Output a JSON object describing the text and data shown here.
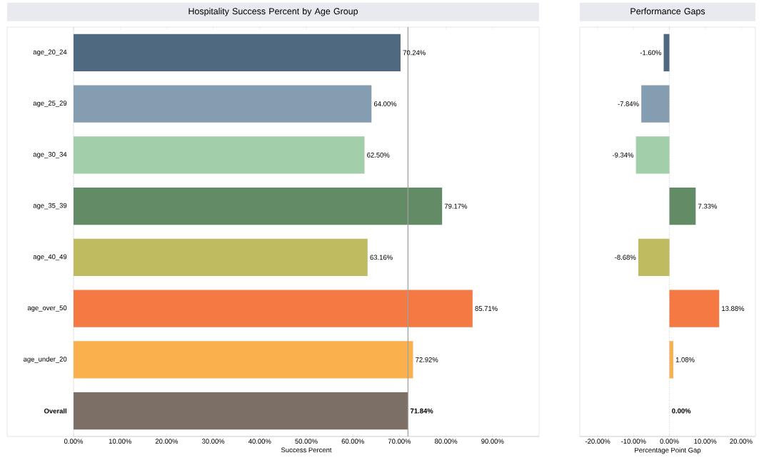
{
  "chart_data": [
    {
      "type": "bar",
      "orientation": "horizontal",
      "title": "Hospitality Success Percent by Age Group",
      "xlabel": "Success Percent",
      "categories": [
        "age_20_24",
        "age_25_29",
        "age_30_34",
        "age_35_39",
        "age_40_49",
        "age_over_50",
        "age_under_20",
        "**Overall**"
      ],
      "values": [
        70.24,
        64.0,
        62.5,
        79.17,
        63.16,
        85.71,
        72.92,
        71.84
      ],
      "colors": [
        "#4f6980",
        "#849db1",
        "#a2ceaa",
        "#638b66",
        "#bfbb60",
        "#f47942",
        "#fbb04e",
        "#7b6f66"
      ],
      "value_labels": [
        "70.24%",
        "64.00%",
        "62.50%",
        "79.17%",
        "63.16%",
        "85.71%",
        "72.92%",
        "**71.84%**"
      ],
      "xlim": [
        0,
        100
      ],
      "xticks": [
        {
          "value": 0,
          "label": "0.00%"
        },
        {
          "value": 10,
          "label": "10.00%"
        },
        {
          "value": 20,
          "label": "20.00%"
        },
        {
          "value": 30,
          "label": "30.00%"
        },
        {
          "value": 40,
          "label": "40.00%"
        },
        {
          "value": 50,
          "label": "50.00%"
        },
        {
          "value": 60,
          "label": "60.00%"
        },
        {
          "value": 70,
          "label": "70.00%"
        },
        {
          "value": 80,
          "label": "80.00%"
        },
        {
          "value": 90,
          "label": "90.00%"
        }
      ],
      "ref_lines": [
        {
          "axis": "x",
          "value": 71.84,
          "color": "#a0a0a0",
          "line_style": "solid"
        }
      ]
    },
    {
      "type": "bar",
      "orientation": "horizontal",
      "title": "Performance Gaps",
      "xlabel": "Percentage Point Gap",
      "categories": [
        null,
        null,
        null,
        null,
        null,
        null,
        null,
        null
      ],
      "values": [
        -1.6,
        -7.84,
        -9.34,
        7.33,
        -8.68,
        13.88,
        1.08,
        0.0
      ],
      "colors": [
        "#4f6980",
        "#849db1",
        "#a2ceaa",
        "#638b66",
        "#bfbb60",
        "#f47942",
        "#fbb04e",
        "#7b6f66"
      ],
      "value_labels": [
        "-1.60%",
        "-7.84%",
        "-9.34%",
        "7.33%",
        "-8.68%",
        "13.88%",
        "1.08%",
        "**0.00%**"
      ],
      "xlim": [
        -25,
        24
      ],
      "xticks": [
        {
          "value": -20,
          "label": "-20.00%"
        },
        {
          "value": -10,
          "label": "-10.00%"
        },
        {
          "value": 0,
          "label": "0.00%"
        },
        {
          "value": 10,
          "label": "10.00%"
        },
        {
          "value": 20,
          "label": "20.00%"
        }
      ],
      "ref_lines": [
        {
          "axis": "x",
          "value": 0,
          "color": "#888888",
          "line_style": "dotted"
        }
      ]
    }
  ]
}
